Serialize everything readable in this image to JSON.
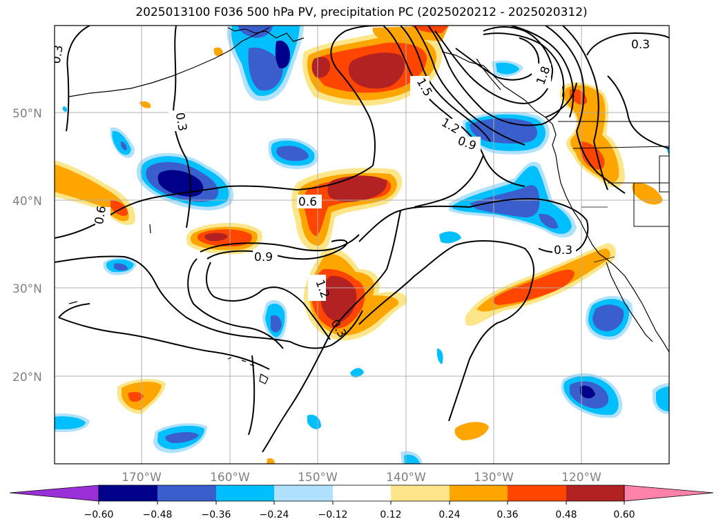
{
  "title": "2025013100 F036 500 hPa PV, precipitation PC (2025020212 - 2025020312)",
  "lat_labels": [
    "50°N",
    "40°N",
    "30°N",
    "20°N"
  ],
  "lon_labels": [
    "170°W",
    "160°W",
    "150°W",
    "140°W",
    "130°W",
    "120°W"
  ],
  "contour_labels": [
    "0.3",
    "0.3",
    "0.6",
    "0.6",
    "0.9",
    "0.9",
    "1.2",
    "1.2",
    "1.5",
    "1.8",
    "0.3",
    "0.3"
  ],
  "colorbar": {
    "ticks": [
      "−0.60",
      "−0.48",
      "−0.36",
      "−0.24",
      "−0.12",
      "0.12",
      "0.24",
      "0.36",
      "0.48",
      "0.60"
    ],
    "colors": [
      "#9b30d9",
      "#00008b",
      "#3a5fcd",
      "#00bfff",
      "#b0e2ff",
      "#ffffff",
      "#fde68a",
      "#ffa500",
      "#ff4500",
      "#b22222",
      "#ff82ab"
    ]
  },
  "palette": {
    "dark_red": "#b22222",
    "red_orange": "#ff4500",
    "orange": "#ffa500",
    "yellow": "#fde68a",
    "navy": "#00008b",
    "blue": "#3a5fcd",
    "deep_sky": "#00bfff",
    "light_blue": "#b0e2ff"
  }
}
